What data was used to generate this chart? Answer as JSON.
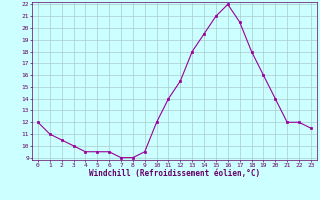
{
  "x": [
    0,
    1,
    2,
    3,
    4,
    5,
    6,
    7,
    8,
    9,
    10,
    11,
    12,
    13,
    14,
    15,
    16,
    17,
    18,
    19,
    20,
    21,
    22,
    23
  ],
  "y": [
    12,
    11,
    10.5,
    10,
    9.5,
    9.5,
    9.5,
    9,
    9,
    9.5,
    12,
    14,
    15.5,
    18,
    19.5,
    21,
    22,
    20.5,
    18,
    16,
    14,
    12,
    12,
    11.5
  ],
  "line_color": "#990099",
  "marker_color": "#990099",
  "bg_color": "#ccffff",
  "grid_color": "#aacccc",
  "xlabel": "Windchill (Refroidissement éolien,°C)",
  "xlabel_color": "#660066",
  "tick_color": "#660066",
  "spine_color": "#660066",
  "ylim_min": 9,
  "ylim_max": 22,
  "xlim_min": -0.5,
  "xlim_max": 23.5,
  "yticks": [
    9,
    10,
    11,
    12,
    13,
    14,
    15,
    16,
    17,
    18,
    19,
    20,
    21,
    22
  ],
  "xticks": [
    0,
    1,
    2,
    3,
    4,
    5,
    6,
    7,
    8,
    9,
    10,
    11,
    12,
    13,
    14,
    15,
    16,
    17,
    18,
    19,
    20,
    21,
    22,
    23
  ]
}
